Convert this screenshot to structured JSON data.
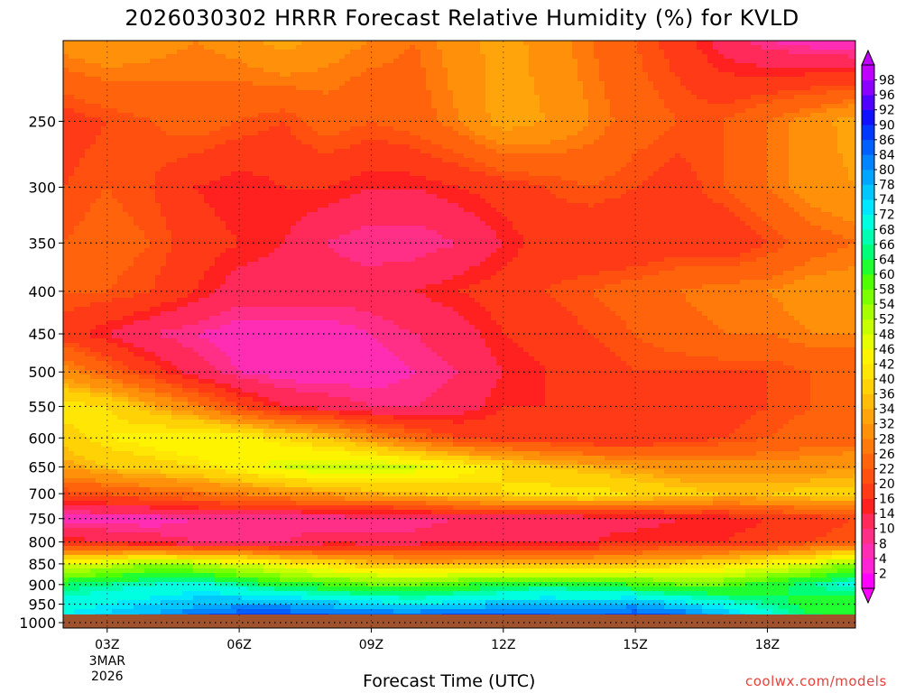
{
  "title": "2026030302 HRRR Forecast Relative Humidity (%) for KVLD",
  "credit": "coolwx.com/models",
  "chart_data": {
    "type": "heatmap",
    "title": "2026030302 HRRR Forecast Relative Humidity (%) for KVLD",
    "xlabel": "Forecast Time (UTC)",
    "ylabel": "",
    "x_ticks": [
      "03Z",
      "06Z",
      "09Z",
      "12Z",
      "15Z",
      "18Z"
    ],
    "x_tick_hours": [
      3,
      6,
      9,
      12,
      15,
      18
    ],
    "x_date_label": [
      "3MAR",
      "2026"
    ],
    "xlim": [
      2,
      20
    ],
    "y_ticks": [
      250,
      300,
      350,
      400,
      450,
      500,
      550,
      600,
      650,
      700,
      750,
      800,
      850,
      900,
      950,
      1000
    ],
    "ylim": [
      1015,
      200
    ],
    "y_scale": "log",
    "grid": true,
    "colorbar": {
      "levels": [
        2,
        4,
        8,
        10,
        14,
        16,
        20,
        22,
        26,
        28,
        32,
        34,
        36,
        40,
        42,
        46,
        48,
        52,
        54,
        58,
        60,
        64,
        66,
        68,
        72,
        74,
        78,
        80,
        84,
        86,
        90,
        92,
        96,
        98
      ],
      "colors": [
        "#ff00ff",
        "#ff22d6",
        "#ff2cb4",
        "#ff2e86",
        "#ff2a5a",
        "#ff2020",
        "#ff3a16",
        "#ff5010",
        "#ff640c",
        "#ff7a0a",
        "#ff900a",
        "#ffa40a",
        "#ffbc08",
        "#ffd206",
        "#ffe604",
        "#fff400",
        "#e6ff00",
        "#c8ff00",
        "#a6ff00",
        "#7cff00",
        "#50ff00",
        "#20ff30",
        "#00ff78",
        "#00ffb0",
        "#00ffe0",
        "#00e8ff",
        "#00c8ff",
        "#00a6ff",
        "#0084ff",
        "#0060ff",
        "#0038ff",
        "#1010ff",
        "#5000ff",
        "#8c00ff",
        "#c000ff"
      ]
    },
    "x": [
      2,
      3,
      4,
      5,
      6,
      7,
      8,
      9,
      10,
      11,
      12,
      13,
      14,
      15,
      16,
      17,
      18,
      19,
      20
    ],
    "pressure_levels": [
      200,
      250,
      300,
      350,
      400,
      450,
      500,
      550,
      600,
      650,
      700,
      750,
      800,
      850,
      900,
      950,
      1000
    ],
    "rh": [
      [
        30,
        32,
        30,
        28,
        30,
        34,
        30,
        28,
        26,
        30,
        34,
        30,
        26,
        22,
        18,
        12,
        8,
        6,
        4
      ],
      [
        18,
        20,
        22,
        24,
        22,
        20,
        24,
        22,
        24,
        28,
        34,
        32,
        28,
        24,
        22,
        22,
        26,
        30,
        34
      ],
      [
        20,
        22,
        20,
        16,
        14,
        16,
        16,
        14,
        14,
        16,
        18,
        20,
        22,
        20,
        18,
        22,
        26,
        30,
        32
      ],
      [
        22,
        24,
        22,
        18,
        16,
        14,
        10,
        8,
        8,
        10,
        14,
        18,
        16,
        16,
        18,
        16,
        20,
        24,
        26
      ],
      [
        22,
        22,
        20,
        16,
        12,
        12,
        12,
        12,
        14,
        16,
        18,
        20,
        22,
        24,
        26,
        28,
        28,
        30,
        30
      ],
      [
        18,
        14,
        10,
        8,
        6,
        6,
        6,
        8,
        10,
        12,
        16,
        18,
        20,
        22,
        24,
        26,
        26,
        28,
        28
      ],
      [
        30,
        24,
        18,
        12,
        8,
        6,
        6,
        6,
        8,
        10,
        14,
        16,
        18,
        20,
        20,
        20,
        20,
        22,
        22
      ],
      [
        42,
        40,
        34,
        28,
        20,
        14,
        12,
        10,
        10,
        12,
        16,
        16,
        18,
        20,
        18,
        18,
        20,
        22,
        22
      ],
      [
        38,
        42,
        44,
        46,
        44,
        40,
        36,
        30,
        24,
        20,
        18,
        18,
        16,
        16,
        18,
        20,
        22,
        24,
        24
      ],
      [
        32,
        36,
        38,
        40,
        44,
        48,
        50,
        50,
        48,
        44,
        40,
        36,
        34,
        32,
        30,
        30,
        30,
        30,
        32
      ],
      [
        20,
        22,
        24,
        26,
        28,
        30,
        32,
        34,
        36,
        38,
        40,
        42,
        42,
        40,
        38,
        36,
        36,
        38,
        38
      ],
      [
        6,
        6,
        6,
        8,
        8,
        8,
        8,
        8,
        8,
        10,
        10,
        10,
        12,
        12,
        14,
        14,
        16,
        18,
        20
      ],
      [
        16,
        14,
        12,
        10,
        10,
        10,
        12,
        12,
        12,
        14,
        14,
        14,
        14,
        16,
        16,
        16,
        18,
        20,
        22
      ],
      [
        46,
        50,
        54,
        52,
        48,
        44,
        40,
        36,
        34,
        34,
        34,
        34,
        34,
        36,
        38,
        40,
        44,
        48,
        56
      ],
      [
        64,
        66,
        68,
        70,
        66,
        62,
        60,
        58,
        58,
        60,
        62,
        64,
        62,
        60,
        58,
        58,
        62,
        66,
        70
      ],
      [
        70,
        72,
        74,
        76,
        78,
        78,
        76,
        74,
        72,
        74,
        76,
        76,
        76,
        78,
        74,
        70,
        66,
        62,
        60
      ],
      [
        74,
        76,
        82,
        90,
        94,
        94,
        92,
        90,
        92,
        94,
        94,
        92,
        90,
        94,
        92,
        82,
        72,
        66,
        62
      ]
    ]
  }
}
